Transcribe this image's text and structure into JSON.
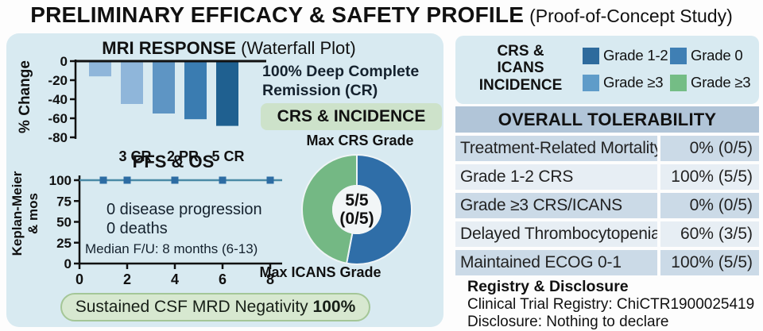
{
  "title": {
    "main": "PRELIMINARY EFFICACY & SAFETY PROFILE",
    "sub": "(Proof-of-Concept Study)"
  },
  "left_panel": {
    "mri_title_bold": "MRI RESPONSE",
    "mri_title_rest": " (Waterfall Plot)",
    "remission_note": "100% Deep Complete Remission (CR)",
    "crs_incidence_badge": "CRS & INCIDENCE",
    "pfs_ylabel_line1": "Keplan-Meier",
    "pfs_ylabel_line2": "& mos",
    "csf_pill_text": "Sustained CSF MRD Negativity ",
    "csf_pill_value": "100%"
  },
  "right_panel": {
    "legend": {
      "title_line1": "CRS &",
      "title_line2": "ICANS",
      "title_line3": "INCIDENCE",
      "items": [
        {
          "label": "Grade 1-2",
          "color": "#2e6b9d"
        },
        {
          "label": "Grade 0",
          "color": "#3f7fb4"
        },
        {
          "label": "Grade ≥3",
          "color": "#5f9cc9"
        },
        {
          "label": "Grade ≥3",
          "color": "#74bd85"
        }
      ]
    },
    "table": {
      "header": "OVERALL TOLERABILITY",
      "rows": [
        {
          "label": "Treatment-Related Mortality",
          "value": "0% (0/5)"
        },
        {
          "label": "Grade 1-2 CRS",
          "value": "100% (5/5)"
        },
        {
          "label": "Grade ≥3 CRS/ICANS",
          "value": "0% (0/5)"
        },
        {
          "label": "Delayed Thrombocytopenia",
          "value": "60% (3/5)"
        },
        {
          "label": "Maintained ECOG 0-1",
          "value": "100% (5/5)"
        }
      ]
    },
    "registry": {
      "heading": "Registry & Disclosure",
      "line1": "Clinical Trial Registry: ChiCTR1900025419",
      "line2": "Disclosure: Nothing to declare"
    }
  },
  "chart_data": [
    {
      "type": "bar",
      "title": "MRI RESPONSE (Waterfall Plot)",
      "ylabel": "% Change",
      "ylim": [
        -80,
        0
      ],
      "yticks": [
        0,
        -20,
        -40,
        -60,
        -80
      ],
      "values": [
        -16,
        -45,
        -55,
        -61,
        -68
      ],
      "bar_colors": [
        "#8fb6da",
        "#8fb6da",
        "#5e95c4",
        "#3a7cb1",
        "#1f6090"
      ],
      "group_labels": [
        "3 CR",
        "2 PR",
        "5 CR"
      ],
      "annotation": "100% Deep Complete Remission (CR)"
    },
    {
      "type": "line",
      "title": "PFS & OS",
      "ylabel": "Keplan-Meier & mos",
      "xlim": [
        0,
        8.5
      ],
      "ylim": [
        0,
        100
      ],
      "xticks": [
        0,
        2,
        4,
        6,
        8
      ],
      "yticks": [
        100,
        75,
        50,
        25,
        0
      ],
      "series": [
        {
          "name": "PFS & OS",
          "x": [
            0,
            1,
            2,
            4,
            6,
            8
          ],
          "y": [
            100,
            100,
            100,
            100,
            100,
            100
          ]
        }
      ],
      "marker_x": [
        1,
        2,
        4,
        6,
        8
      ],
      "line_color": "#4b8aa6",
      "marker_color": "#2d6ca3",
      "annotations": [
        "0 disease progression",
        "0 deaths",
        "Median F/U: 8 months (6-13)"
      ]
    },
    {
      "type": "pie",
      "donut": true,
      "title_top": "Max CRS Grade",
      "title_bottom": "Max ICANS Grade",
      "slices": [
        {
          "label": "Max CRS Grade 1-2 (5/5)",
          "pct": 53,
          "color": "#2f6ea8"
        },
        {
          "label": "Max ICANS Grade 0",
          "pct": 47,
          "color": "#74b884"
        }
      ],
      "center_label_line1": "5/5",
      "center_label_line2": "(0/5)"
    }
  ],
  "colors": {
    "panel_bg": "#d8eaf1",
    "badge_green_bg": "#cde2ca",
    "pill_green_bg": "#d7e8d0",
    "pill_green_border": "#a4c697",
    "table_header_bg": "#b1c5d8",
    "table_row_odd_bg": "#cbdae7",
    "table_row_even_bg": "#e7eef4"
  }
}
